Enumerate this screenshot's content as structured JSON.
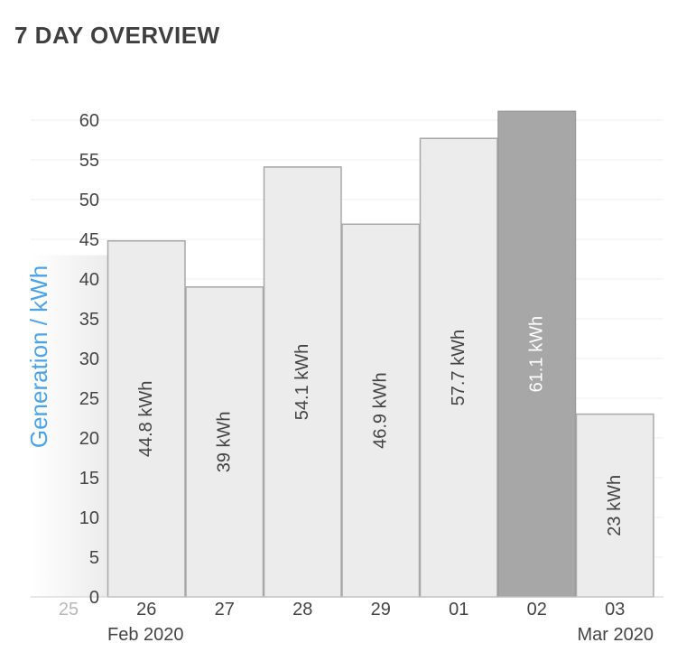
{
  "header": {
    "title": "7 DAY OVERVIEW"
  },
  "chart_data": {
    "type": "bar",
    "ylabel": "Generation / kWh",
    "ylim": [
      0,
      60
    ],
    "yticks": [
      0,
      5,
      10,
      15,
      20,
      25,
      30,
      35,
      40,
      45,
      50,
      55,
      60
    ],
    "partial_category": "25",
    "categories": [
      "26",
      "27",
      "28",
      "29",
      "01",
      "02",
      "03"
    ],
    "values": [
      44.8,
      39,
      54.1,
      46.9,
      57.7,
      61.1,
      23
    ],
    "value_labels": [
      "44.8 kWh",
      "39 kWh",
      "54.1 kWh",
      "46.9 kWh",
      "57.7 kWh",
      "61.1 kWh",
      "23 kWh"
    ],
    "selected_index": 5,
    "month_labels": [
      "Feb 2020",
      "Mar 2020"
    ],
    "colors": {
      "bar_fill": "#ececec",
      "bar_stroke": "#a8a8a8",
      "selected_fill": "#a7a7a8",
      "ylabel_color": "#4aa3e8",
      "grid": "#efefef"
    }
  }
}
